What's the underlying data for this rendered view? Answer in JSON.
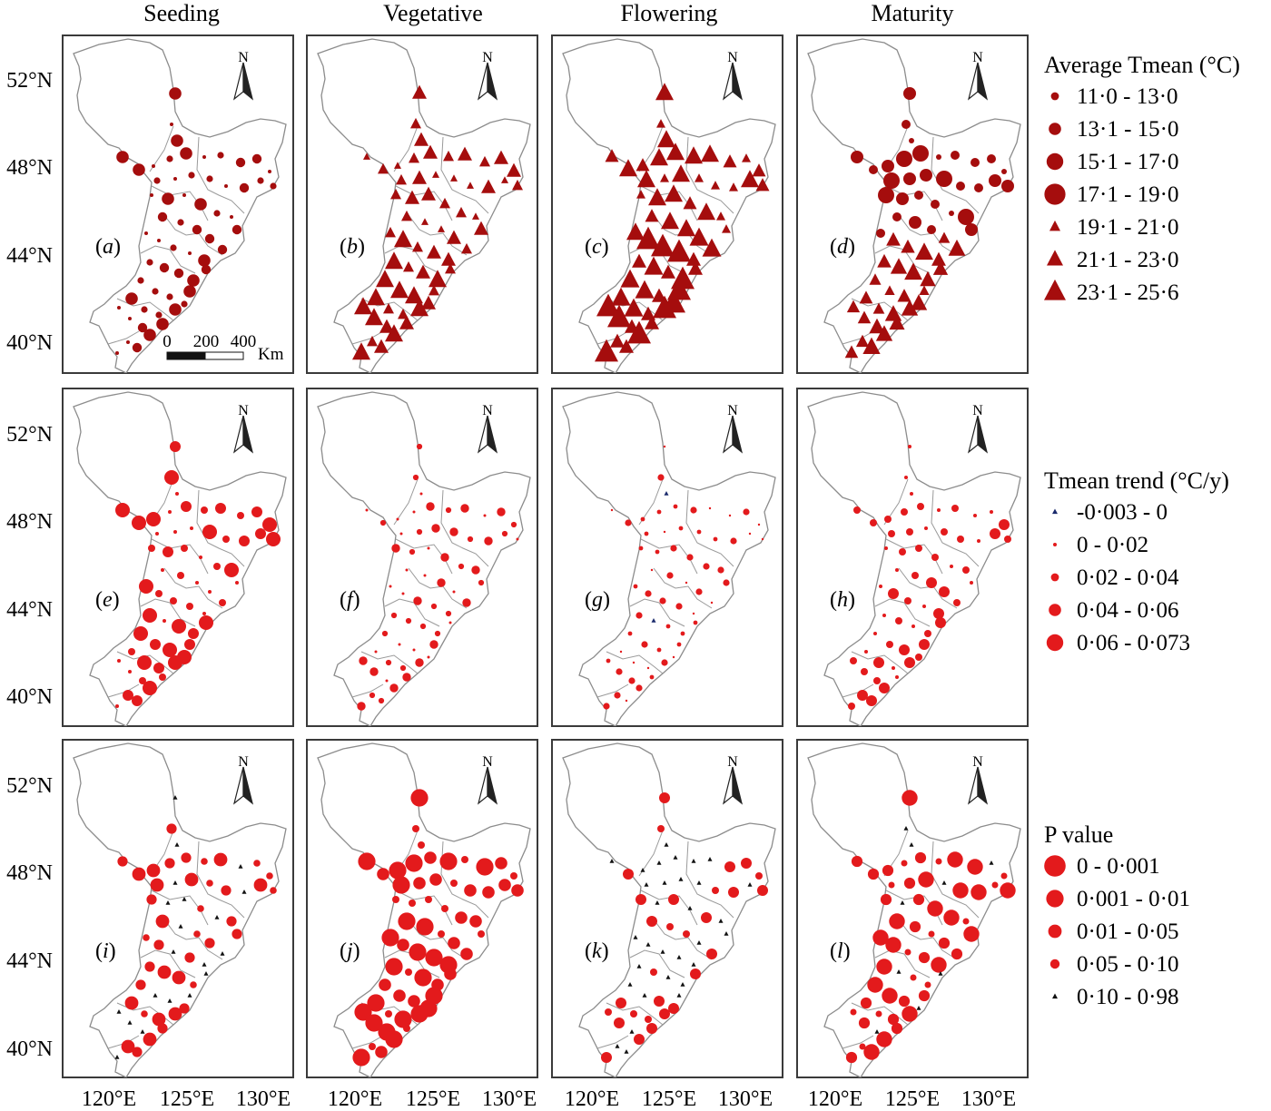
{
  "figure": {
    "columns": [
      "Seeding",
      "Vegetative",
      "Flowering",
      "Maturity"
    ],
    "panel_labels": [
      "a",
      "b",
      "c",
      "d",
      "e",
      "f",
      "g",
      "h",
      "i",
      "j",
      "k",
      "l"
    ],
    "lat_labels": [
      "52°N",
      "48°N",
      "44°N",
      "40°N"
    ],
    "lon_labels": [
      "120°E",
      "125°E",
      "130°E"
    ],
    "north_label": "N",
    "scale_bar": {
      "ticks": [
        "0",
        "200",
        "400"
      ],
      "unit": "Km"
    },
    "colors": {
      "dark_red": "#a50d0d",
      "red": "#e31a1c",
      "navy": "#1a2a6c",
      "black": "#111111",
      "outline": "#8c8c8c"
    }
  },
  "legends": [
    {
      "title": "Average Tmean (°C)",
      "items": [
        {
          "label": "11·0 - 13·0",
          "shape": "circle",
          "size": 1
        },
        {
          "label": "13·1 - 15·0",
          "shape": "circle",
          "size": 2
        },
        {
          "label": "15·1 - 17·0",
          "shape": "circle",
          "size": 3
        },
        {
          "label": "17·1 - 19·0",
          "shape": "circle",
          "size": 4
        },
        {
          "label": "19·1 - 21·0",
          "shape": "triangle",
          "size": 1
        },
        {
          "label": "21·1 - 23·0",
          "shape": "triangle",
          "size": 2
        },
        {
          "label": "23·1 - 25·6",
          "shape": "triangle",
          "size": 3
        }
      ]
    },
    {
      "title": "Tmean trend (°C/y)",
      "items": [
        {
          "label": "-0·003 - 0",
          "shape": "triangle",
          "size": 0
        },
        {
          "label": "0 - 0·02",
          "shape": "circle",
          "size": 0
        },
        {
          "label": "0·02 - 0·04",
          "shape": "circle",
          "size": 1
        },
        {
          "label": "0·04 - 0·06",
          "shape": "circle",
          "size": 2
        },
        {
          "label": "0·06 - 0·073",
          "shape": "circle",
          "size": 3
        }
      ]
    },
    {
      "title": "P value",
      "items": [
        {
          "label": "0 - 0·001",
          "shape": "circle",
          "size": 4
        },
        {
          "label": "0·001 - 0·01",
          "shape": "circle",
          "size": 3
        },
        {
          "label": "0·01 - 0·05",
          "shape": "circle",
          "size": 2
        },
        {
          "label": "0·05 - 0·10",
          "shape": "circle",
          "size": 1
        },
        {
          "label": "0·10 - 0·98",
          "shape": "triangle",
          "size": 0
        }
      ]
    }
  ]
}
